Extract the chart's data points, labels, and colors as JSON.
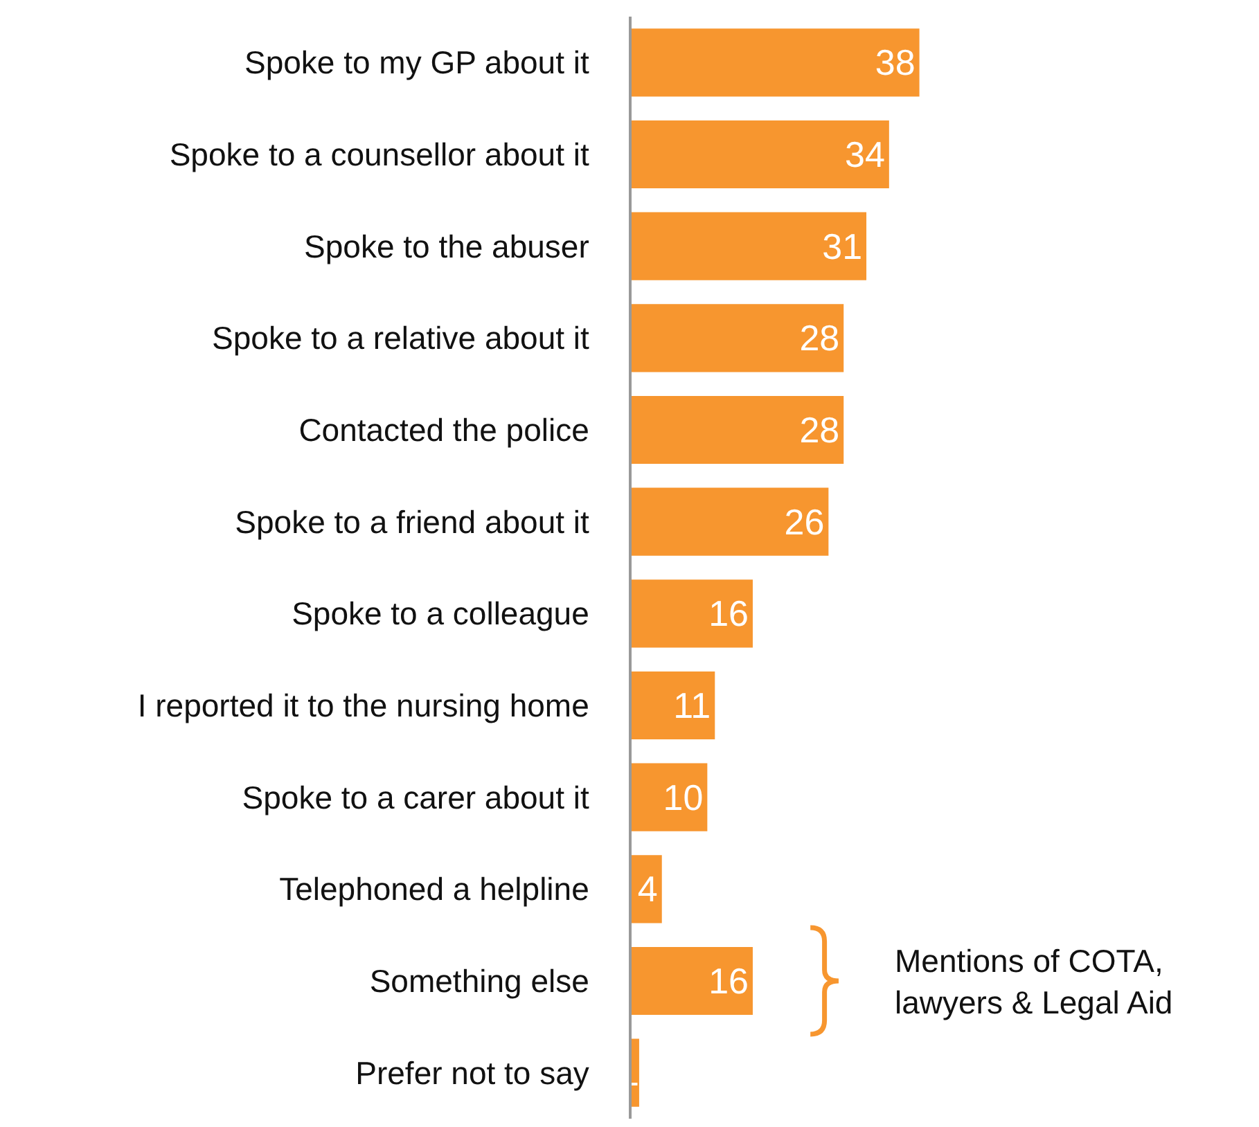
{
  "chart_data": {
    "type": "bar",
    "orientation": "horizontal",
    "data_labels": true,
    "categories": [
      "Spoke to my GP about it",
      "Spoke to a counsellor about it",
      "Spoke to the abuser",
      "Spoke to a relative about it",
      "Contacted the police",
      "Spoke to a friend about it",
      "Spoke to a colleague",
      "I reported it to the nursing home",
      "Spoke to a carer about it",
      "Telephoned a helpline",
      "Something else",
      "Prefer not to say"
    ],
    "values": [
      38,
      34,
      31,
      28,
      28,
      26,
      16,
      11,
      10,
      4,
      16,
      1
    ],
    "color": "#f7962f",
    "annotations": [
      "Mentions of COTA,\nlawyers & Legal Aid"
    ]
  }
}
